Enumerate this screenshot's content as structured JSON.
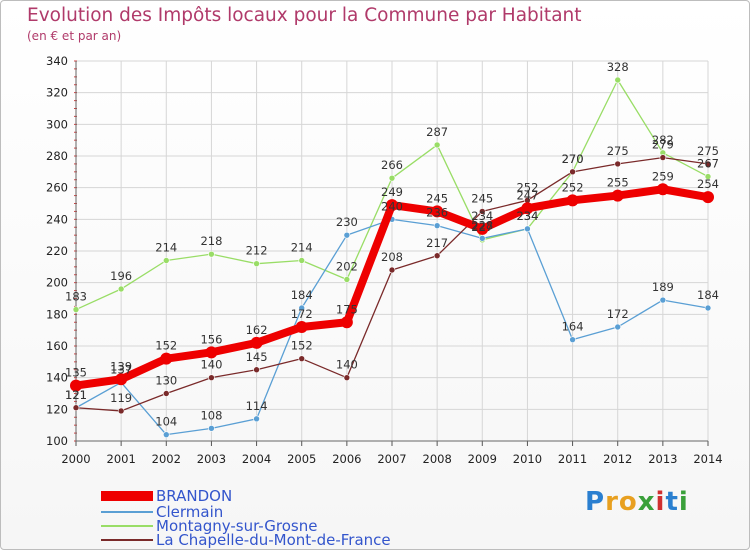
{
  "chart_data": {
    "type": "line",
    "title": "Evolution des Impôts locaux pour la Commune par Habitant",
    "subtitle": "(en € et par an)",
    "x": [
      "2000",
      "2001",
      "2002",
      "2003",
      "2004",
      "2005",
      "2006",
      "2007",
      "2008",
      "2009",
      "2010",
      "2011",
      "2012",
      "2013",
      "2014"
    ],
    "ylim": [
      100,
      340
    ],
    "yticks": [
      100,
      120,
      140,
      160,
      180,
      200,
      220,
      240,
      260,
      280,
      300,
      320,
      340
    ],
    "grid": true,
    "legend_position": "bottom-left",
    "series": [
      {
        "name": "BRANDON",
        "color": "#ee0000",
        "values": [
          135,
          139,
          152,
          156,
          162,
          172,
          175,
          249,
          245,
          234,
          247,
          252,
          255,
          259,
          254
        ]
      },
      {
        "name": "Clermain",
        "color": "#5a9fd4",
        "values": [
          121,
          137,
          104,
          108,
          114,
          184,
          230,
          240,
          236,
          228,
          234,
          164,
          172,
          189,
          184
        ]
      },
      {
        "name": "Montagny-sur-Grosne",
        "color": "#99dd66",
        "values": [
          183,
          196,
          214,
          218,
          212,
          214,
          202,
          266,
          287,
          227,
          234,
          270,
          328,
          282,
          267
        ]
      },
      {
        "name": "La Chapelle-du-Mont-de-France",
        "color": "#7a2a2a",
        "values": [
          121,
          119,
          130,
          140,
          145,
          152,
          140,
          208,
          217,
          245,
          252,
          270,
          275,
          279,
          275
        ]
      }
    ]
  },
  "logo_text": "Proxiti"
}
